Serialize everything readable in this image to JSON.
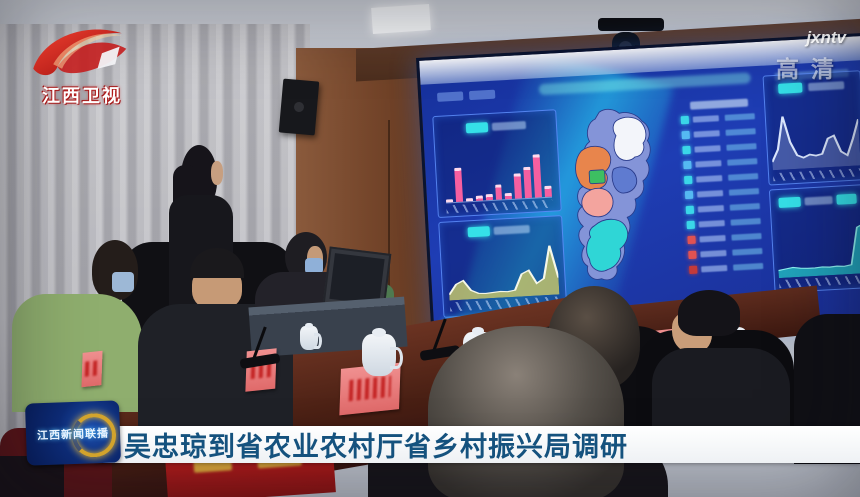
{
  "channel": {
    "name": "江西卫视"
  },
  "watermark": {
    "site": "jxntv",
    "hd_label": "高清"
  },
  "caption": {
    "badge": "江西新闻联播",
    "title": "吴忠琼到省农业农村厅省乡村振兴局调研"
  },
  "chart_data": [
    {
      "type": "bar",
      "name": "dashboard-top-left-bar-chart",
      "values": [
        6,
        60,
        5,
        9,
        11,
        27,
        10,
        44,
        55,
        76,
        20
      ],
      "bar_color": "#f65fa0",
      "ylim": [
        0,
        100
      ]
    },
    {
      "type": "area",
      "name": "dashboard-bottom-left-area-chart",
      "values": [
        10,
        28,
        34,
        16,
        10,
        9,
        10,
        11,
        10,
        12,
        40,
        46,
        22,
        30,
        88,
        30
      ],
      "fill_color": "#b8bd6e",
      "line_color": "#f5f7e8",
      "ylim": [
        0,
        100
      ]
    },
    {
      "type": "line",
      "name": "dashboard-top-right-line-chart",
      "values": [
        12,
        30,
        78,
        40,
        20,
        16,
        20,
        18,
        20,
        42,
        46,
        22,
        16,
        40,
        68
      ],
      "line_color": "#dce8ff",
      "ylim": [
        0,
        100
      ]
    },
    {
      "type": "area",
      "name": "dashboard-bottom-right-spike-chart",
      "values": [
        13,
        15,
        17,
        15,
        14,
        14,
        15,
        14,
        15,
        14,
        16,
        80,
        86
      ],
      "fill_color": "#23b8c4",
      "line_color": "#8ef2f2",
      "ylim": [
        0,
        100
      ]
    }
  ],
  "dashboard": {
    "accent_color": "#35e0e8",
    "ranking_markers": [
      "#3ad6e8",
      "#55b9f2",
      "#3ad6e8",
      "#55b9f2",
      "#3ad6e8",
      "#55b9f2",
      "#3ad6e8",
      "#3ad6e8",
      "#e05252",
      "#e05252",
      "#c43a3a"
    ],
    "map_regions": [
      {
        "name": "base",
        "color": "#8494d8"
      },
      {
        "name": "northeast",
        "color": "#f3f5fa"
      },
      {
        "name": "east-mid",
        "color": "#5f7bd0"
      },
      {
        "name": "west",
        "color": "#e8854c"
      },
      {
        "name": "center-green",
        "color": "#3dbf62"
      },
      {
        "name": "center-salmon",
        "color": "#f3a49e"
      },
      {
        "name": "south",
        "color": "#2fd6d6"
      }
    ]
  }
}
